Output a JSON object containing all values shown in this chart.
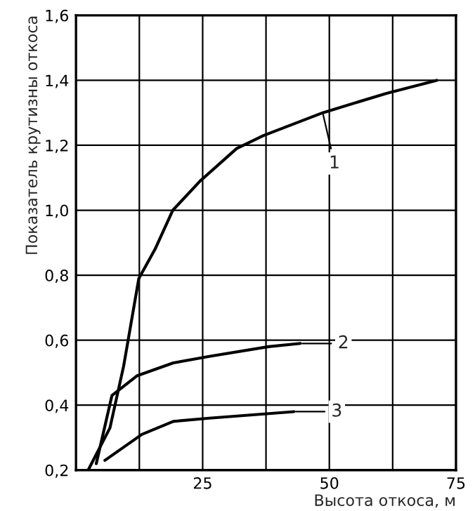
{
  "chart_data": {
    "type": "line",
    "xlabel": "Высота откоса, м",
    "ylabel": "Показатель крутизны откоса",
    "xlim": [
      0,
      75
    ],
    "ylim": [
      0.2,
      1.6
    ],
    "xticks": [
      {
        "value": 12.5,
        "label": null
      },
      25,
      {
        "value": 37.5,
        "label": null
      },
      50,
      {
        "value": 62.5,
        "label": null
      },
      75
    ],
    "yticks": [
      {
        "value": 0.2,
        "label": "0,2"
      },
      {
        "value": 0.4,
        "label": "0,4"
      },
      {
        "value": 0.6,
        "label": "0,6"
      },
      {
        "value": 0.8,
        "label": "0,8"
      },
      {
        "value": 1.0,
        "label": "1,0"
      },
      {
        "value": 1.2,
        "label": "1,2"
      },
      {
        "value": 1.4,
        "label": "1,4"
      },
      {
        "value": 1.6,
        "label": "1,6"
      }
    ],
    "grid": true,
    "legend": "right",
    "marker": "none",
    "line_style": "solid",
    "series": [
      {
        "name": "1",
        "color": "#000000",
        "x": [
          2.4,
          6.7,
          9.4,
          12.4,
          15.6,
          19.1,
          24.5,
          31.7,
          37,
          48.7,
          61.3,
          71.2
        ],
        "values": [
          0.2,
          0.33,
          0.52,
          0.79,
          0.88,
          1.0,
          1.09,
          1.19,
          1.23,
          1.3,
          1.36,
          1.4
        ]
      },
      {
        "name": "2",
        "color": "#000000",
        "x": [
          4,
          7.1,
          12,
          19.2,
          26.3,
          38,
          44.3
        ],
        "values": [
          0.22,
          0.43,
          0.49,
          0.53,
          0.55,
          0.58,
          0.59
        ]
      },
      {
        "name": "3",
        "color": "#000000",
        "x": [
          5.7,
          13,
          19.2,
          26.3,
          43
        ],
        "values": [
          0.23,
          0.31,
          0.35,
          0.36,
          0.38
        ]
      }
    ]
  }
}
